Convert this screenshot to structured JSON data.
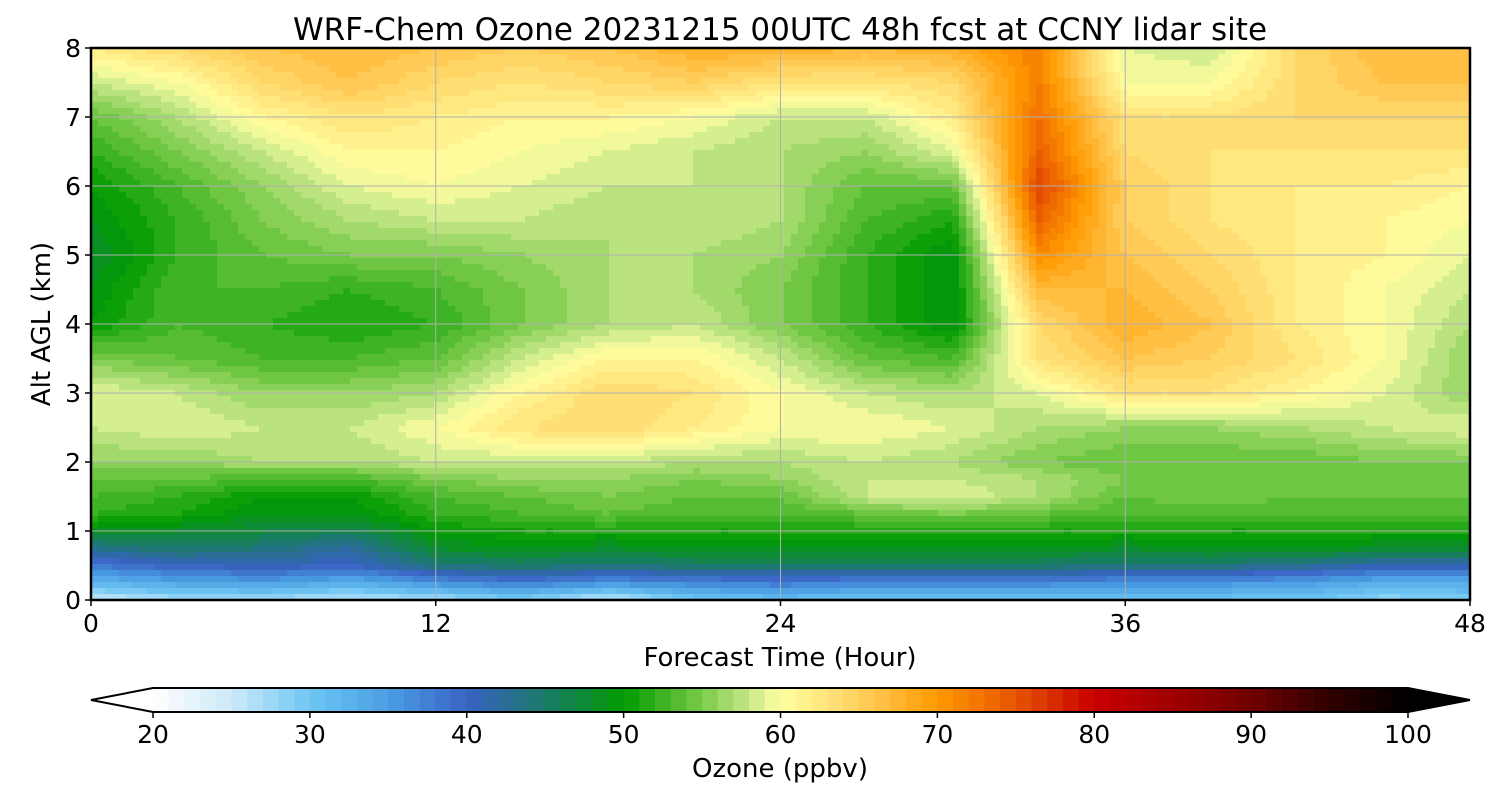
{
  "chart_data": {
    "type": "heatmap",
    "title": "WRF-Chem Ozone  20231215 00UTC 48h fcst at CCNY lidar site",
    "xlabel": "Forecast Time (Hour)",
    "ylabel": "Alt AGL (km)",
    "xlim": [
      0,
      48
    ],
    "ylim": [
      0,
      8
    ],
    "xticks": [
      0,
      12,
      24,
      36,
      48
    ],
    "yticks": [
      0,
      1,
      2,
      3,
      4,
      5,
      6,
      7,
      8
    ],
    "grid": true,
    "x": [
      0,
      3,
      6,
      9,
      12,
      15,
      18,
      21,
      24,
      27,
      30,
      33,
      36,
      39,
      42,
      45,
      48
    ],
    "y": [
      0.0,
      0.25,
      0.5,
      0.75,
      1.0,
      1.25,
      1.5,
      1.75,
      2.0,
      2.5,
      3.0,
      3.5,
      4.0,
      4.5,
      5.0,
      5.5,
      6.0,
      6.5,
      7.0,
      7.5,
      8.0
    ],
    "z": [
      [
        25,
        27,
        27,
        26,
        27,
        29,
        25,
        30,
        31,
        30,
        30,
        30,
        30,
        30,
        30,
        28,
        29
      ],
      [
        32,
        34,
        35,
        33,
        36,
        38,
        36,
        37,
        38,
        37,
        37,
        37,
        36,
        36,
        35,
        33,
        33
      ],
      [
        38,
        40,
        41,
        40,
        44,
        45,
        44,
        45,
        45,
        45,
        45,
        45,
        44,
        44,
        43,
        41,
        41
      ],
      [
        43,
        45,
        44,
        42,
        48,
        49,
        48,
        49,
        49,
        49,
        49,
        49,
        48,
        49,
        49,
        48,
        48
      ],
      [
        49,
        48,
        47,
        46,
        50,
        51,
        51,
        51,
        51,
        51,
        51,
        51,
        51,
        51,
        51,
        51,
        51
      ],
      [
        52,
        51,
        49,
        49,
        52,
        53,
        54,
        53,
        53,
        54,
        55,
        54,
        53,
        53,
        53,
        53,
        53
      ],
      [
        53,
        52,
        50,
        50,
        53,
        54,
        55,
        54,
        54,
        58,
        59,
        57,
        54,
        55,
        54,
        54,
        54
      ],
      [
        54,
        54,
        53,
        53,
        55,
        56,
        56,
        55,
        56,
        58,
        58,
        57,
        55,
        55,
        55,
        55,
        54
      ],
      [
        56,
        56,
        57,
        57,
        58,
        58,
        58,
        57,
        57,
        58,
        57,
        55,
        54,
        54,
        54,
        55,
        55
      ],
      [
        58,
        59,
        58,
        58,
        60,
        63,
        64,
        62,
        60,
        60,
        59,
        57,
        56,
        56,
        57,
        58,
        59
      ],
      [
        59,
        58,
        56,
        56,
        57,
        61,
        64,
        63,
        60,
        58,
        57,
        59,
        63,
        63,
        61,
        59,
        56
      ],
      [
        55,
        54,
        53,
        53,
        54,
        58,
        61,
        61,
        58,
        54,
        53,
        63,
        66,
        65,
        63,
        60,
        56
      ],
      [
        50,
        53,
        52,
        51,
        52,
        55,
        57,
        58,
        55,
        52,
        49,
        64,
        68,
        66,
        62,
        60,
        57
      ],
      [
        49,
        53,
        53,
        52,
        53,
        55,
        57,
        57,
        55,
        52,
        49,
        67,
        67,
        65,
        62,
        60,
        58
      ],
      [
        48,
        52,
        54,
        55,
        55,
        56,
        57,
        57,
        56,
        52,
        49,
        71,
        66,
        64,
        62,
        61,
        59
      ],
      [
        49,
        52,
        55,
        57,
        58,
        58,
        57,
        58,
        57,
        53,
        51,
        74,
        65,
        63,
        62,
        61,
        60
      ],
      [
        50,
        53,
        56,
        59,
        60,
        59,
        58,
        58,
        57,
        54,
        54,
        76,
        65,
        63,
        62,
        62,
        61
      ],
      [
        52,
        55,
        58,
        61,
        61,
        60,
        59,
        58,
        57,
        56,
        59,
        74,
        64,
        63,
        63,
        63,
        63
      ],
      [
        54,
        57,
        61,
        63,
        62,
        61,
        61,
        60,
        58,
        58,
        62,
        73,
        63,
        63,
        64,
        64,
        64
      ],
      [
        58,
        60,
        64,
        66,
        64,
        63,
        64,
        65,
        63,
        63,
        64,
        72,
        60,
        60,
        64,
        66,
        66
      ],
      [
        62,
        64,
        66,
        67,
        66,
        65,
        66,
        68,
        68,
        67,
        68,
        72,
        59,
        58,
        64,
        67,
        67
      ]
    ],
    "colorbar": {
      "label": "Ozone  (ppbv)",
      "min": 20,
      "max": 100,
      "ticks": [
        20,
        30,
        40,
        50,
        60,
        70,
        80,
        90,
        100
      ],
      "extend": "both",
      "stops": [
        {
          "v": 20,
          "c": "#ffffff"
        },
        {
          "v": 25,
          "c": "#cde9f8"
        },
        {
          "v": 30,
          "c": "#6ec6f3"
        },
        {
          "v": 35,
          "c": "#4a9ee3"
        },
        {
          "v": 40,
          "c": "#3a62c4"
        },
        {
          "v": 45,
          "c": "#1a7a6a"
        },
        {
          "v": 50,
          "c": "#009a00"
        },
        {
          "v": 55,
          "c": "#7acb4a"
        },
        {
          "v": 58,
          "c": "#c7e88a"
        },
        {
          "v": 60,
          "c": "#ffffa0"
        },
        {
          "v": 65,
          "c": "#ffd060"
        },
        {
          "v": 70,
          "c": "#ff9a00"
        },
        {
          "v": 75,
          "c": "#e65400"
        },
        {
          "v": 80,
          "c": "#c80000"
        },
        {
          "v": 85,
          "c": "#a00000"
        },
        {
          "v": 90,
          "c": "#700000"
        },
        {
          "v": 95,
          "c": "#300000"
        },
        {
          "v": 100,
          "c": "#000000"
        }
      ],
      "levels": 80
    }
  }
}
